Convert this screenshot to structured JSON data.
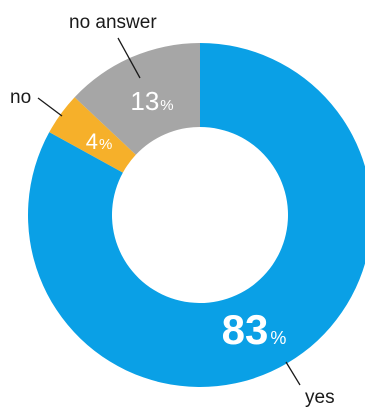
{
  "chart_data": {
    "type": "pie",
    "donut": true,
    "title": "",
    "categories": [
      "yes",
      "no",
      "no answer"
    ],
    "values": [
      83,
      4,
      13
    ],
    "unit": "%",
    "colors": [
      "#0aa0e6",
      "#f6b02a",
      "#a6a6a6"
    ],
    "legend": "none",
    "labels": [
      {
        "name": "yes",
        "value_text": "83",
        "unit_text": "%"
      },
      {
        "name": "no",
        "value_text": "4",
        "unit_text": "%"
      },
      {
        "name": "no answer",
        "value_text": "13",
        "unit_text": "%"
      }
    ]
  }
}
